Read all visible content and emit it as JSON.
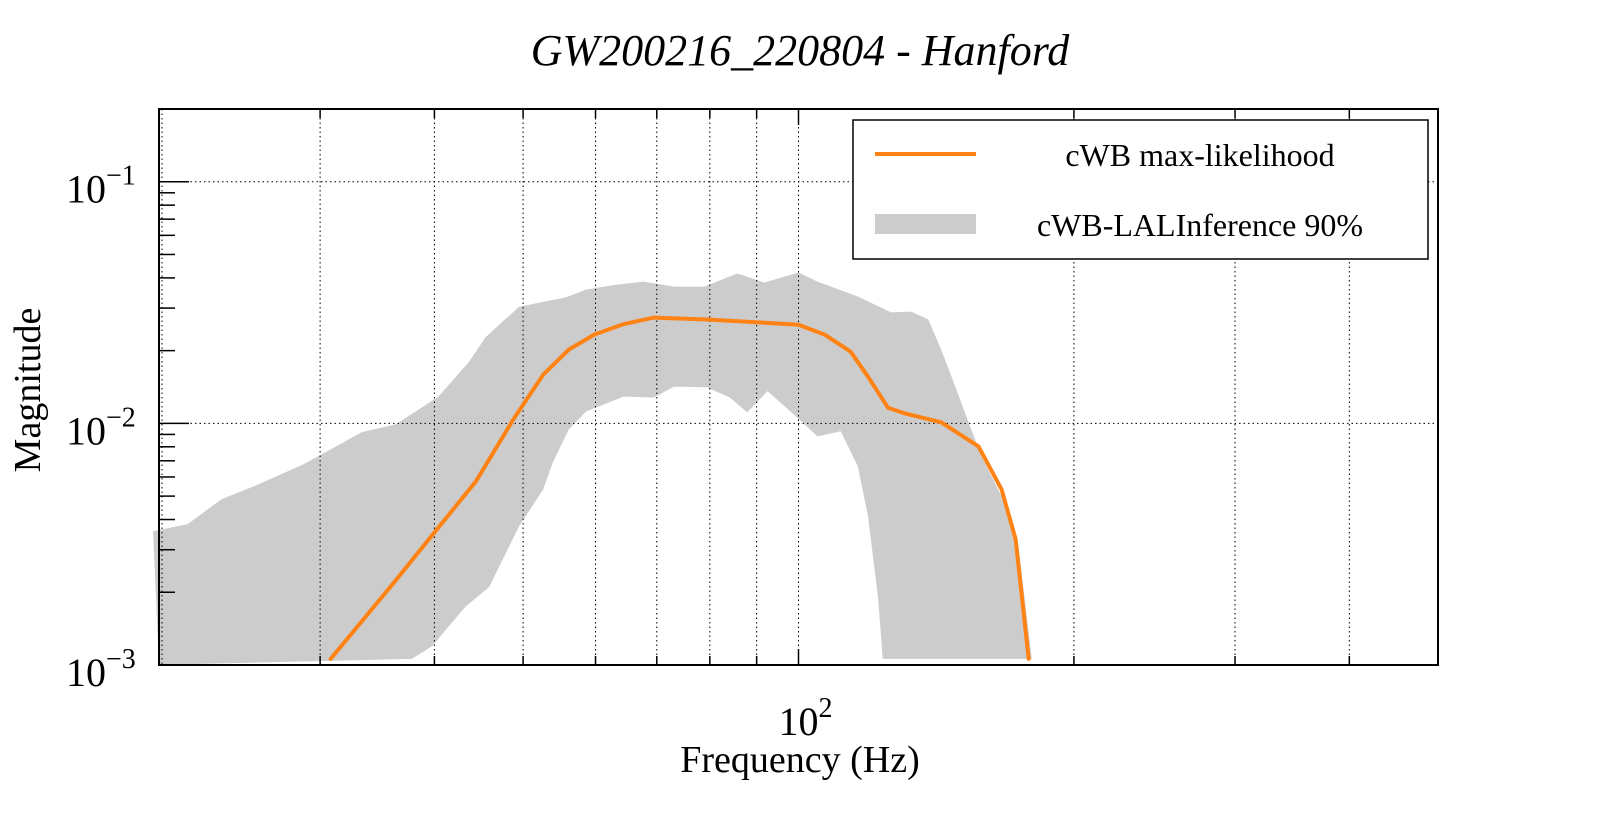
{
  "chart_data": {
    "type": "line",
    "title": "GW200216_220804 - Hanford",
    "xlabel": "Frequency (Hz)",
    "ylabel": "Magnitude",
    "xscale": "log",
    "yscale": "log",
    "xlim": [
      20,
      500
    ],
    "ylim": [
      0.001,
      0.2
    ],
    "grid": true,
    "x_ticks": [
      {
        "value": 100,
        "base": "10",
        "exp": "2"
      }
    ],
    "x_grid": [
      30,
      40,
      50,
      60,
      70,
      80,
      90,
      100,
      200,
      300,
      400
    ],
    "y_ticks": [
      {
        "value": 0.1,
        "base": "10",
        "exp": "−1"
      },
      {
        "value": 0.01,
        "base": "10",
        "exp": "−2"
      },
      {
        "value": 0.001,
        "base": "10",
        "exp": "−3"
      }
    ],
    "legend": {
      "position": "top-right",
      "entries": [
        {
          "label": "cWB max-likelihood",
          "type": "line",
          "color": "#ff8214"
        },
        {
          "label": "cWB-LALInference 90%",
          "type": "band",
          "color": "#cccccc"
        }
      ]
    },
    "series": [
      {
        "name": "cWB max-likelihood",
        "color": "#ff8214",
        "x": [
          30.8,
          36.0,
          40.1,
          44.4,
          48.8,
          52.6,
          56.1,
          59.8,
          64.5,
          69.5,
          79.4,
          91.8,
          100,
          106.8,
          114.0,
          119.1,
          125.3,
          130.7,
          143.2,
          157.3,
          166.7,
          172.7,
          178.5
        ],
        "y": [
          0.00106,
          0.00216,
          0.00358,
          0.00575,
          0.0104,
          0.0159,
          0.0202,
          0.0233,
          0.0258,
          0.0274,
          0.0269,
          0.0261,
          0.0256,
          0.0233,
          0.0198,
          0.0156,
          0.0116,
          0.011,
          0.0101,
          0.00803,
          0.00533,
          0.00332,
          0.00106
        ]
      },
      {
        "name": "cWB-LALInference 90%",
        "type": "band",
        "color": "#cccccc",
        "upper": {
          "x": [
            19.7,
            21.5,
            23.4,
            25.4,
            28.8,
            33.3,
            36.3,
            40.4,
            43.6,
            45.5,
            49.5,
            55.7,
            58.6,
            63.2,
            67.7,
            73.1,
            78.9,
            85.7,
            91.8,
            100,
            104.9,
            116.1,
            126.2,
            132.8,
            138.6,
            143.2,
            148.4,
            153.4,
            158.5,
            166.7,
            174.1,
            179.9
          ],
          "y": [
            0.00358,
            0.00383,
            0.00485,
            0.00549,
            0.00678,
            0.00918,
            0.00991,
            0.0129,
            0.0179,
            0.0227,
            0.0304,
            0.0332,
            0.0358,
            0.0375,
            0.0386,
            0.0368,
            0.0368,
            0.0417,
            0.0383,
            0.0421,
            0.0386,
            0.0335,
            0.0288,
            0.029,
            0.0269,
            0.0202,
            0.0142,
            0.0101,
            0.00731,
            0.00499,
            0.00302,
            0.00106
          ]
        },
        "lower": {
          "x": [
            19.7,
            37.8,
            39.8,
            41.5,
            43.3,
            45.9,
            47.1,
            49.5,
            52.6,
            53.9,
            56.1,
            58.6,
            64.4,
            69.5,
            73.1,
            79.4,
            84.1,
            87.9,
            92.5,
            98.0,
            104.9,
            111.2,
            116.1,
            119.1,
            122.2,
            123.6
          ],
          "y": [
            0.001,
            0.00106,
            0.0012,
            0.00145,
            0.00175,
            0.0021,
            0.00256,
            0.00375,
            0.00533,
            0.0069,
            0.00944,
            0.0112,
            0.0129,
            0.0128,
            0.0142,
            0.0141,
            0.0128,
            0.0111,
            0.0136,
            0.0112,
            0.00883,
            0.00927,
            0.00664,
            0.00413,
            0.00188,
            0.00106
          ]
        }
      }
    ]
  }
}
